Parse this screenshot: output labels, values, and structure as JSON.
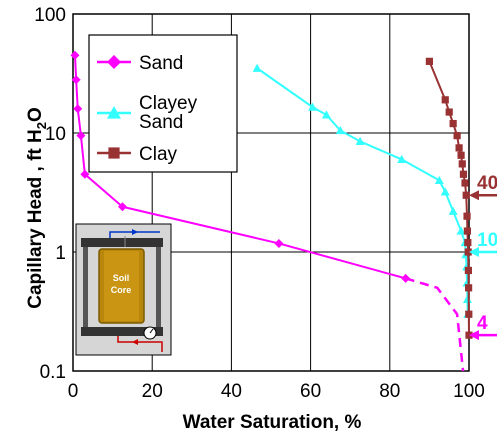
{
  "chart_data": {
    "type": "line",
    "title": "",
    "xlabel": "Water Saturation, %",
    "ylabel_main": "Capillary Head , ft H",
    "ylabel_sub": "2",
    "ylabel_end": "O",
    "xlim": [
      0,
      100
    ],
    "ylim": [
      0.1,
      100
    ],
    "yscale": "log",
    "grid": true,
    "legend_position": "top-left",
    "x_ticks": [
      "0",
      "20",
      "40",
      "60",
      "80",
      "100"
    ],
    "y_ticks": [
      "0.1",
      "1",
      "10",
      "100"
    ],
    "series": [
      {
        "name": "Sand",
        "color": "#ff00ff",
        "marker": "diamond",
        "points": [
          [
            0.5,
            45
          ],
          [
            0.8,
            28
          ],
          [
            1.2,
            16
          ],
          [
            2.0,
            9.5
          ],
          [
            3.0,
            4.5
          ],
          [
            12.5,
            2.4
          ],
          [
            52,
            1.18
          ],
          [
            84,
            0.6
          ]
        ],
        "dashed_points": [
          [
            84,
            0.6
          ],
          [
            92,
            0.5
          ],
          [
            97,
            0.3
          ],
          [
            98.5,
            0.1
          ]
        ]
      },
      {
        "name": "Clayey Sand",
        "color": "#33ffff",
        "marker": "triangle",
        "points": [
          [
            46.5,
            35
          ],
          [
            60.5,
            16.5
          ],
          [
            64,
            14.2
          ],
          [
            67.5,
            10.5
          ],
          [
            72.5,
            8.5
          ],
          [
            83,
            6.0
          ],
          [
            92.5,
            4.0
          ],
          [
            94,
            3.2
          ],
          [
            96,
            2.2
          ],
          [
            98,
            1.5
          ],
          [
            99,
            1.2
          ],
          [
            99.2,
            0.95
          ],
          [
            99.4,
            0.75
          ],
          [
            99.5,
            0.55
          ],
          [
            99.6,
            0.4
          ],
          [
            99.7,
            0.3
          ]
        ]
      },
      {
        "name": "Clay",
        "color": "#993333",
        "marker": "square",
        "points": [
          [
            90,
            40
          ],
          [
            94,
            19
          ],
          [
            95,
            15
          ],
          [
            96,
            12
          ],
          [
            97,
            9.5
          ],
          [
            97.5,
            7.5
          ],
          [
            98,
            6.5
          ],
          [
            98.3,
            5.5
          ],
          [
            98.6,
            4.5
          ],
          [
            99,
            3.8
          ],
          [
            99.3,
            3.0
          ],
          [
            99.5,
            2.0
          ],
          [
            99.6,
            1.5
          ],
          [
            99.7,
            1.2
          ],
          [
            99.8,
            1.0
          ],
          [
            99.85,
            0.7
          ],
          [
            99.9,
            0.5
          ],
          [
            99.95,
            0.3
          ],
          [
            100,
            0.2
          ]
        ]
      }
    ],
    "annotations": [
      {
        "text": "40",
        "color": "#993333",
        "x": 100,
        "y": 3.0
      },
      {
        "text": "10",
        "color": "#33ffff",
        "x": 100,
        "y": 1.0
      },
      {
        "text": "4",
        "color": "#ff00ff",
        "x": 100,
        "y": 0.2
      }
    ],
    "inset": {
      "label_line1": "Soil",
      "label_line2": "Core"
    }
  }
}
